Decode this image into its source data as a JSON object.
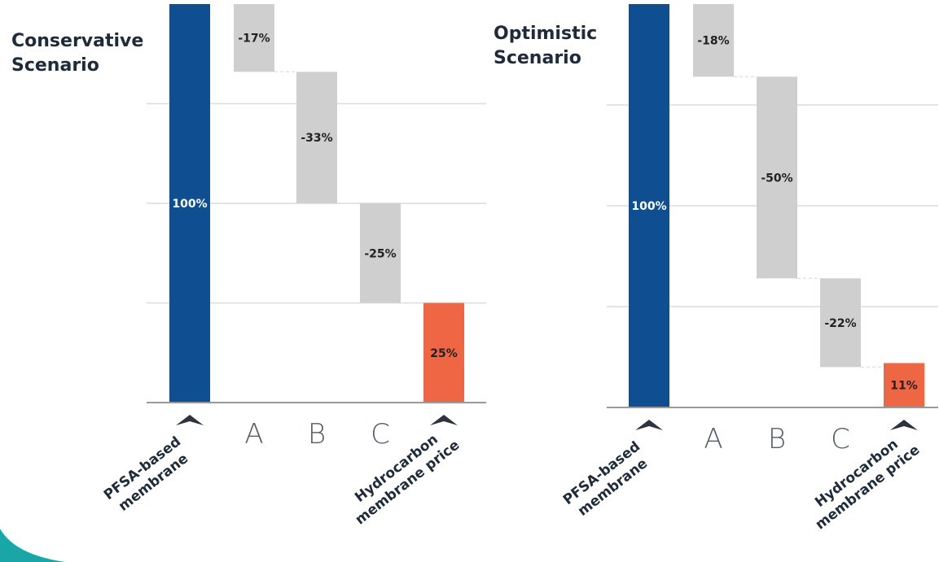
{
  "chart_data": [
    {
      "type": "waterfall",
      "title": [
        "Conservative",
        "Scenario"
      ],
      "categories": [
        {
          "kind": "caret",
          "lines": [
            "PFSA-based",
            "membrane"
          ]
        },
        {
          "kind": "letter",
          "text": "A"
        },
        {
          "kind": "letter",
          "text": "B"
        },
        {
          "kind": "letter",
          "text": "C"
        },
        {
          "kind": "caret",
          "lines": [
            "Hydrocarbon",
            "membrane price"
          ]
        }
      ],
      "bars": [
        {
          "kind": "total",
          "value": 100,
          "label": "100%"
        },
        {
          "kind": "delta",
          "value": -17,
          "label": "-17%"
        },
        {
          "kind": "delta",
          "value": -33,
          "label": "-33%"
        },
        {
          "kind": "delta",
          "value": -25,
          "label": "-25%"
        },
        {
          "kind": "total",
          "value": 25,
          "label": "25%"
        }
      ],
      "ylim": [
        0,
        100
      ],
      "grid": true,
      "colors": {
        "start": "#0f4f91",
        "delta": "#cfcfcf",
        "end": "#ef6645"
      }
    },
    {
      "type": "waterfall",
      "title": [
        "Optimistic",
        "Scenario"
      ],
      "categories": [
        {
          "kind": "caret",
          "lines": [
            "PFSA-based",
            "membrane"
          ]
        },
        {
          "kind": "letter",
          "text": "A"
        },
        {
          "kind": "letter",
          "text": "B"
        },
        {
          "kind": "letter",
          "text": "C"
        },
        {
          "kind": "caret",
          "lines": [
            "Hydrocarbon",
            "membrane price"
          ]
        }
      ],
      "bars": [
        {
          "kind": "total",
          "value": 100,
          "label": "100%"
        },
        {
          "kind": "delta",
          "value": -18,
          "label": "-18%"
        },
        {
          "kind": "delta",
          "value": -50,
          "label": "-50%"
        },
        {
          "kind": "delta",
          "value": -22,
          "label": "-22%"
        },
        {
          "kind": "total",
          "value": 11,
          "label": "11%"
        }
      ],
      "ylim": [
        0,
        100
      ],
      "grid": true,
      "colors": {
        "start": "#0f4f91",
        "delta": "#cfcfcf",
        "end": "#ef6645"
      }
    }
  ],
  "decor": {
    "accent_color": "#1aa6a6"
  }
}
